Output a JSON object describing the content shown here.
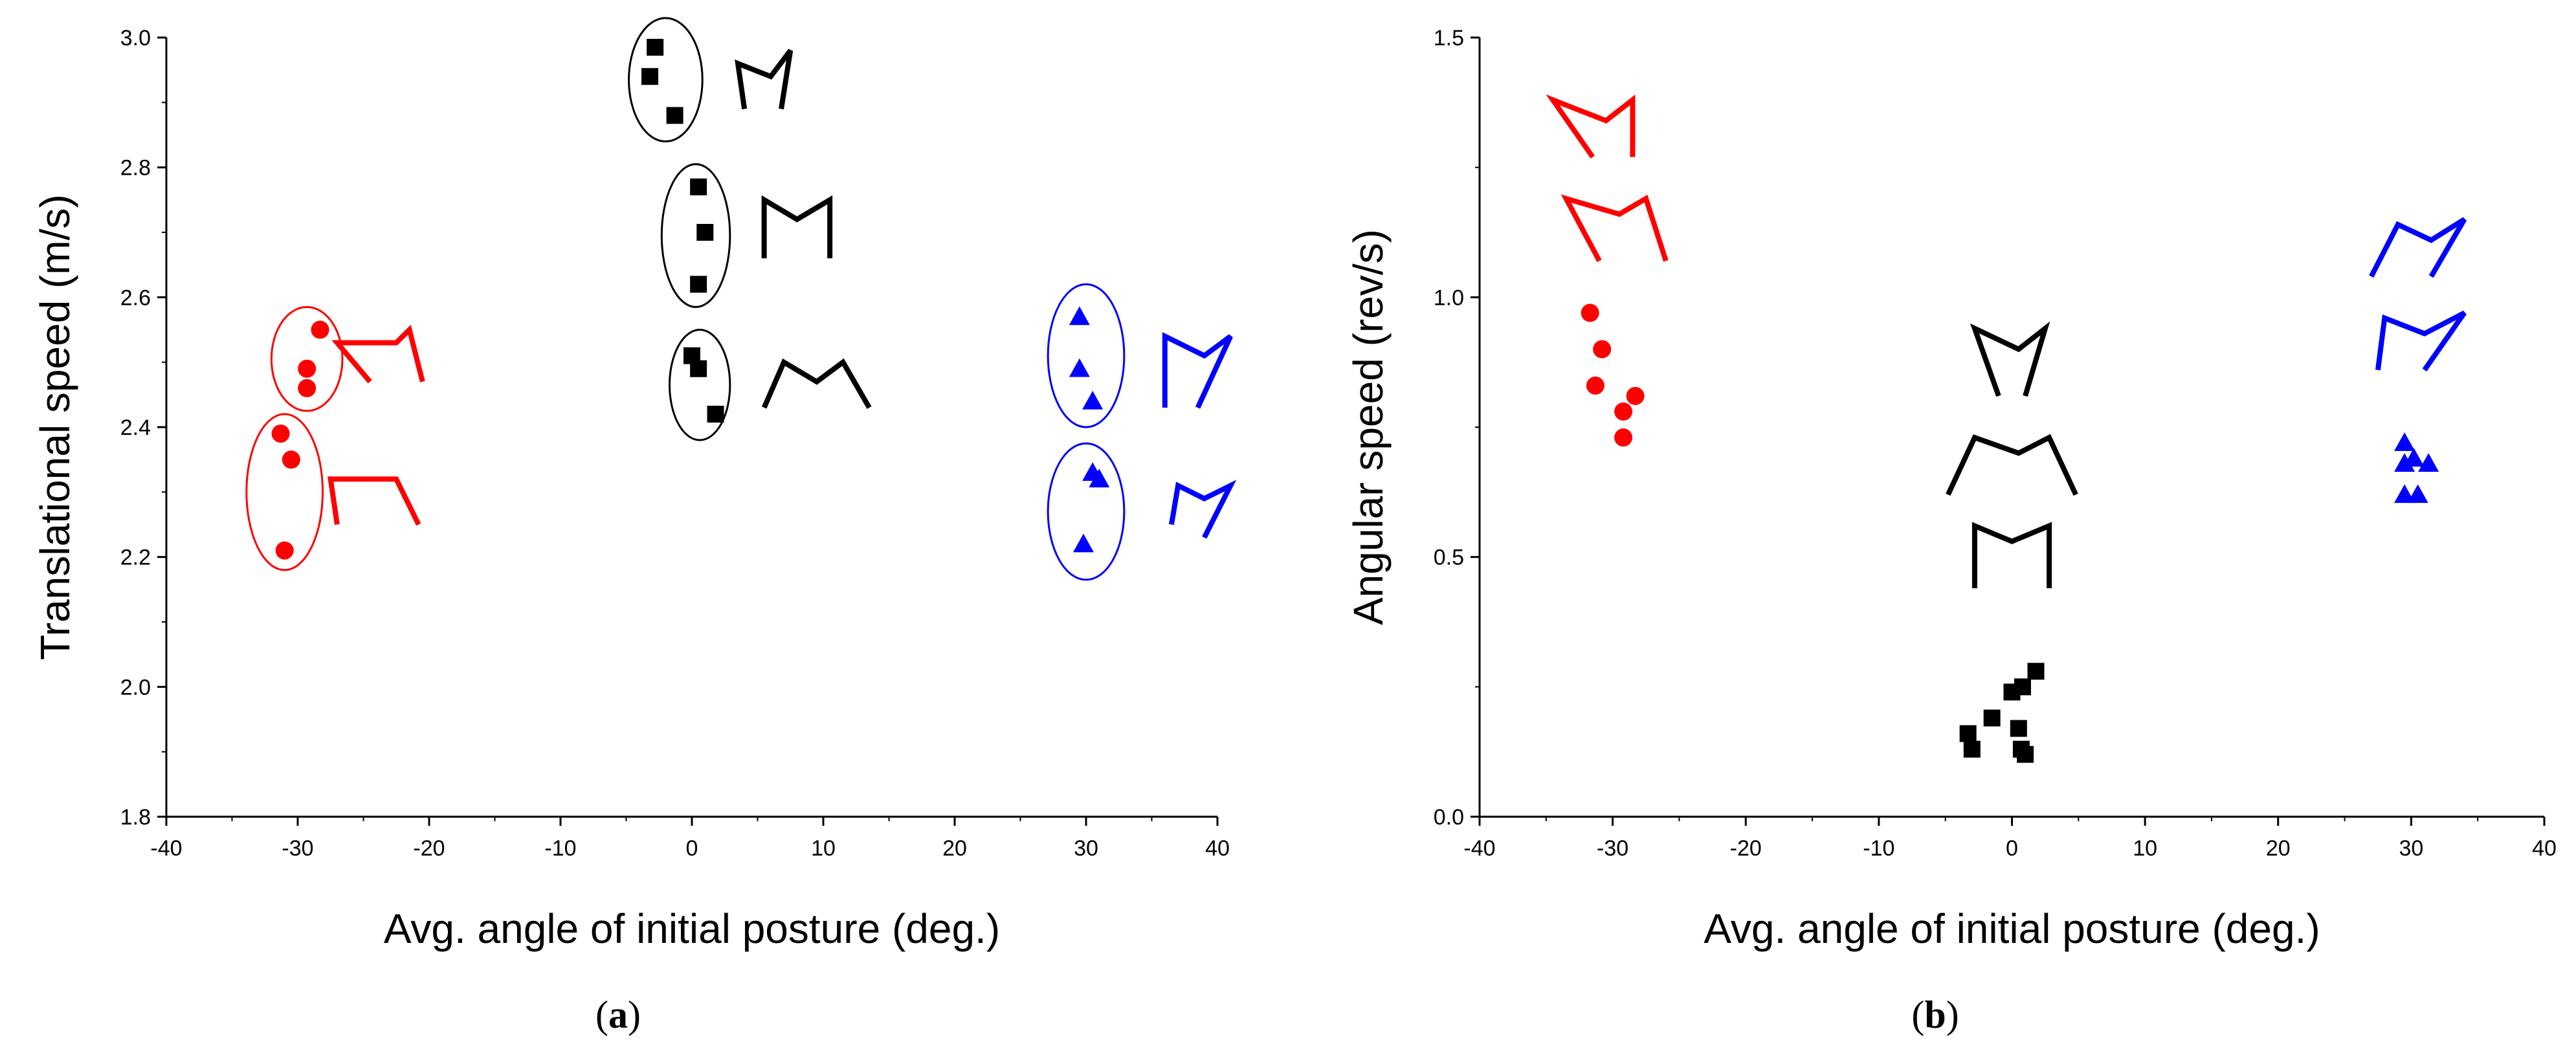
{
  "chart_data": [
    {
      "panel": "(a)",
      "panel_label_open": "(",
      "panel_label_letter": "a",
      "panel_label_close": ")",
      "type": "scatter",
      "title": "",
      "xlabel": "Avg. angle of initial posture (deg.)",
      "ylabel": "Translational speed (m/s)",
      "xlim": [
        -40,
        40
      ],
      "ylim": [
        1.8,
        3.0
      ],
      "xticks": [
        -40,
        -30,
        -20,
        -10,
        0,
        10,
        20,
        30,
        40
      ],
      "yticks": [
        1.8,
        2.0,
        2.2,
        2.4,
        2.6,
        2.8,
        3.0
      ],
      "ytick_decimals": 1,
      "grid": false,
      "series": [
        {
          "color": "#ff0000",
          "marker": "circle",
          "points": [
            [
              -28.3,
              2.55
            ],
            [
              -29.3,
              2.49
            ],
            [
              -29.3,
              2.46
            ],
            [
              -31.3,
              2.39
            ],
            [
              -30.5,
              2.35
            ],
            [
              -31.0,
              2.21
            ]
          ]
        },
        {
          "color": "#000000",
          "marker": "square",
          "points": [
            [
              -2.8,
              2.985
            ],
            [
              -3.2,
              2.94
            ],
            [
              -1.3,
              2.88
            ],
            [
              0.5,
              2.77
            ],
            [
              1.0,
              2.7
            ],
            [
              0.5,
              2.62
            ],
            [
              0.0,
              2.51
            ],
            [
              0.5,
              2.49
            ],
            [
              1.8,
              2.42
            ]
          ]
        },
        {
          "color": "#0000ff",
          "marker": "triangle",
          "points": [
            [
              29.5,
              2.57
            ],
            [
              29.5,
              2.49
            ],
            [
              30.5,
              2.44
            ],
            [
              30.5,
              2.33
            ],
            [
              31.0,
              2.32
            ],
            [
              29.8,
              2.22
            ]
          ]
        }
      ],
      "groups": [
        {
          "color": "#ff0000",
          "center": [
            -29.3,
            2.505
          ],
          "radius": [
            2.7,
            0.08
          ]
        },
        {
          "color": "#ff0000",
          "center": [
            -31.0,
            2.3
          ],
          "radius": [
            2.9,
            0.12
          ]
        },
        {
          "color": "#000000",
          "center": [
            -2.0,
            2.935
          ],
          "radius": [
            2.8,
            0.095
          ]
        },
        {
          "color": "#000000",
          "center": [
            0.3,
            2.695
          ],
          "radius": [
            2.6,
            0.11
          ]
        },
        {
          "color": "#000000",
          "center": [
            0.6,
            2.465
          ],
          "radius": [
            2.3,
            0.085
          ]
        },
        {
          "color": "#0000ff",
          "center": [
            30.0,
            2.51
          ],
          "radius": [
            2.9,
            0.11
          ]
        },
        {
          "color": "#0000ff",
          "center": [
            30.0,
            2.27
          ],
          "radius": [
            2.9,
            0.105
          ]
        }
      ],
      "posture_glyphs": [
        {
          "color": "#ff0000",
          "shape": [
            [
              -24.5,
              2.47
            ],
            [
              -27.0,
              2.53
            ],
            [
              -22.5,
              2.53
            ],
            [
              -21.5,
              2.55
            ],
            [
              -20.5,
              2.47
            ]
          ]
        },
        {
          "color": "#ff0000",
          "shape": [
            [
              -27.0,
              2.25
            ],
            [
              -27.5,
              2.32
            ],
            [
              -22.5,
              2.32
            ],
            [
              -20.8,
              2.25
            ]
          ]
        },
        {
          "color": "#000000",
          "shape": [
            [
              4.0,
              2.89
            ],
            [
              3.5,
              2.96
            ],
            [
              6.0,
              2.94
            ],
            [
              7.5,
              2.98
            ],
            [
              6.8,
              2.89
            ]
          ]
        },
        {
          "color": "#000000",
          "shape": [
            [
              5.5,
              2.66
            ],
            [
              5.5,
              2.75
            ],
            [
              8.0,
              2.72
            ],
            [
              10.5,
              2.75
            ],
            [
              10.5,
              2.66
            ]
          ]
        },
        {
          "color": "#000000",
          "shape": [
            [
              5.5,
              2.43
            ],
            [
              7.0,
              2.5
            ],
            [
              9.5,
              2.47
            ],
            [
              11.5,
              2.5
            ],
            [
              13.5,
              2.43
            ]
          ]
        },
        {
          "color": "#0000ff",
          "shape": [
            [
              36.0,
              2.43
            ],
            [
              36.0,
              2.54
            ],
            [
              39.0,
              2.51
            ],
            [
              41.0,
              2.54
            ],
            [
              38.5,
              2.43
            ]
          ]
        },
        {
          "color": "#0000ff",
          "shape": [
            [
              36.5,
              2.25
            ],
            [
              37.0,
              2.31
            ],
            [
              39.0,
              2.29
            ],
            [
              41.0,
              2.31
            ],
            [
              39.0,
              2.23
            ]
          ]
        }
      ]
    },
    {
      "panel": "(b)",
      "panel_label_open": "(",
      "panel_label_letter": "b",
      "panel_label_close": ")",
      "type": "scatter",
      "title": "",
      "xlabel": "Avg. angle of initial posture (deg.)",
      "ylabel": "Angular speed (rev/s)",
      "xlim": [
        -40,
        40
      ],
      "ylim": [
        0.0,
        1.5
      ],
      "xticks": [
        -40,
        -30,
        -20,
        -10,
        0,
        10,
        20,
        30,
        40
      ],
      "yticks": [
        0.0,
        0.5,
        1.0,
        1.5
      ],
      "ytick_decimals": 1,
      "grid": false,
      "series": [
        {
          "color": "#ff0000",
          "marker": "circle",
          "points": [
            [
              -31.7,
              0.97
            ],
            [
              -30.8,
              0.9
            ],
            [
              -31.3,
              0.83
            ],
            [
              -28.3,
              0.81
            ],
            [
              -29.2,
              0.78
            ],
            [
              -29.2,
              0.73
            ]
          ]
        },
        {
          "color": "#000000",
          "marker": "square",
          "points": [
            [
              1.8,
              0.28
            ],
            [
              0.0,
              0.24
            ],
            [
              0.8,
              0.25
            ],
            [
              -1.5,
              0.19
            ],
            [
              0.5,
              0.17
            ],
            [
              -3.3,
              0.16
            ],
            [
              -3.0,
              0.13
            ],
            [
              0.7,
              0.13
            ],
            [
              1.0,
              0.12
            ]
          ]
        },
        {
          "color": "#0000ff",
          "marker": "triangle",
          "points": [
            [
              29.5,
              0.72
            ],
            [
              30.2,
              0.69
            ],
            [
              29.5,
              0.68
            ],
            [
              31.3,
              0.68
            ],
            [
              29.5,
              0.62
            ],
            [
              30.5,
              0.62
            ]
          ]
        }
      ],
      "groups": [],
      "posture_glyphs": [
        {
          "color": "#ff0000",
          "shape": [
            [
              -31.5,
              1.27
            ],
            [
              -34.5,
              1.38
            ],
            [
              -30.5,
              1.34
            ],
            [
              -28.5,
              1.38
            ],
            [
              -28.5,
              1.27
            ]
          ]
        },
        {
          "color": "#ff0000",
          "shape": [
            [
              -31.0,
              1.07
            ],
            [
              -33.5,
              1.19
            ],
            [
              -29.5,
              1.16
            ],
            [
              -27.5,
              1.19
            ],
            [
              -26.0,
              1.07
            ]
          ]
        },
        {
          "color": "#ff0000",
          "shape": []
        },
        {
          "color": "#000000",
          "shape": [
            [
              -1.0,
              0.81
            ],
            [
              -2.8,
              0.94
            ],
            [
              0.5,
              0.9
            ],
            [
              2.5,
              0.94
            ],
            [
              1.0,
              0.81
            ]
          ]
        },
        {
          "color": "#000000",
          "shape": [
            [
              -4.8,
              0.62
            ],
            [
              -2.8,
              0.73
            ],
            [
              0.5,
              0.7
            ],
            [
              2.8,
              0.73
            ],
            [
              4.8,
              0.62
            ]
          ]
        },
        {
          "color": "#000000",
          "shape": [
            [
              -2.8,
              0.44
            ],
            [
              -2.8,
              0.56
            ],
            [
              0.0,
              0.53
            ],
            [
              2.8,
              0.56
            ],
            [
              2.8,
              0.44
            ]
          ]
        },
        {
          "color": "#0000ff",
          "shape": [
            [
              27.0,
              1.04
            ],
            [
              29.0,
              1.14
            ],
            [
              31.5,
              1.11
            ],
            [
              34.0,
              1.15
            ],
            [
              31.5,
              1.04
            ]
          ]
        },
        {
          "color": "#0000ff",
          "shape": [
            [
              27.5,
              0.86
            ],
            [
              28.0,
              0.96
            ],
            [
              31.0,
              0.93
            ],
            [
              34.0,
              0.97
            ],
            [
              31.0,
              0.86
            ]
          ]
        }
      ]
    }
  ]
}
